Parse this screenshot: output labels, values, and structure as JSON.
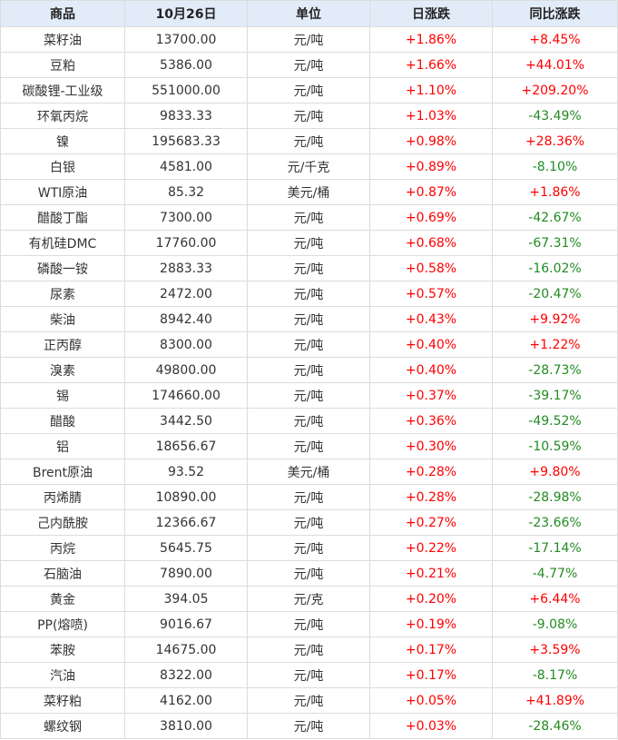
{
  "colors": {
    "header_bg": "#e2ecf9",
    "up": "#ff0000",
    "down": "#228b22"
  },
  "headers": [
    "商品",
    "10月26日",
    "单位",
    "日涨跌",
    "同比涨跌"
  ],
  "rows": [
    [
      "菜籽油",
      "13700.00",
      "元/吨",
      "+1.86%",
      "+8.45%"
    ],
    [
      "豆粕",
      "5386.00",
      "元/吨",
      "+1.66%",
      "+44.01%"
    ],
    [
      "碳酸锂-工业级",
      "551000.00",
      "元/吨",
      "+1.10%",
      "+209.20%"
    ],
    [
      "环氧丙烷",
      "9833.33",
      "元/吨",
      "+1.03%",
      "-43.49%"
    ],
    [
      "镍",
      "195683.33",
      "元/吨",
      "+0.98%",
      "+28.36%"
    ],
    [
      "白银",
      "4581.00",
      "元/千克",
      "+0.89%",
      "-8.10%"
    ],
    [
      "WTI原油",
      "85.32",
      "美元/桶",
      "+0.87%",
      "+1.86%"
    ],
    [
      "醋酸丁酯",
      "7300.00",
      "元/吨",
      "+0.69%",
      "-42.67%"
    ],
    [
      "有机硅DMC",
      "17760.00",
      "元/吨",
      "+0.68%",
      "-67.31%"
    ],
    [
      "磷酸一铵",
      "2883.33",
      "元/吨",
      "+0.58%",
      "-16.02%"
    ],
    [
      "尿素",
      "2472.00",
      "元/吨",
      "+0.57%",
      "-20.47%"
    ],
    [
      "柴油",
      "8942.40",
      "元/吨",
      "+0.43%",
      "+9.92%"
    ],
    [
      "正丙醇",
      "8300.00",
      "元/吨",
      "+0.40%",
      "+1.22%"
    ],
    [
      "溴素",
      "49800.00",
      "元/吨",
      "+0.40%",
      "-28.73%"
    ],
    [
      "锡",
      "174660.00",
      "元/吨",
      "+0.37%",
      "-39.17%"
    ],
    [
      "醋酸",
      "3442.50",
      "元/吨",
      "+0.36%",
      "-49.52%"
    ],
    [
      "铝",
      "18656.67",
      "元/吨",
      "+0.30%",
      "-10.59%"
    ],
    [
      "Brent原油",
      "93.52",
      "美元/桶",
      "+0.28%",
      "+9.80%"
    ],
    [
      "丙烯腈",
      "10890.00",
      "元/吨",
      "+0.28%",
      "-28.98%"
    ],
    [
      "己内酰胺",
      "12366.67",
      "元/吨",
      "+0.27%",
      "-23.66%"
    ],
    [
      "丙烷",
      "5645.75",
      "元/吨",
      "+0.22%",
      "-17.14%"
    ],
    [
      "石脑油",
      "7890.00",
      "元/吨",
      "+0.21%",
      "-4.77%"
    ],
    [
      "黄金",
      "394.05",
      "元/克",
      "+0.20%",
      "+6.44%"
    ],
    [
      "PP(熔喷)",
      "9016.67",
      "元/吨",
      "+0.19%",
      "-9.08%"
    ],
    [
      "苯胺",
      "14675.00",
      "元/吨",
      "+0.17%",
      "+3.59%"
    ],
    [
      "汽油",
      "8322.00",
      "元/吨",
      "+0.17%",
      "-8.17%"
    ],
    [
      "菜籽粕",
      "4162.00",
      "元/吨",
      "+0.05%",
      "+41.89%"
    ],
    [
      "螺纹钢",
      "3810.00",
      "元/吨",
      "+0.03%",
      "-28.46%"
    ]
  ]
}
